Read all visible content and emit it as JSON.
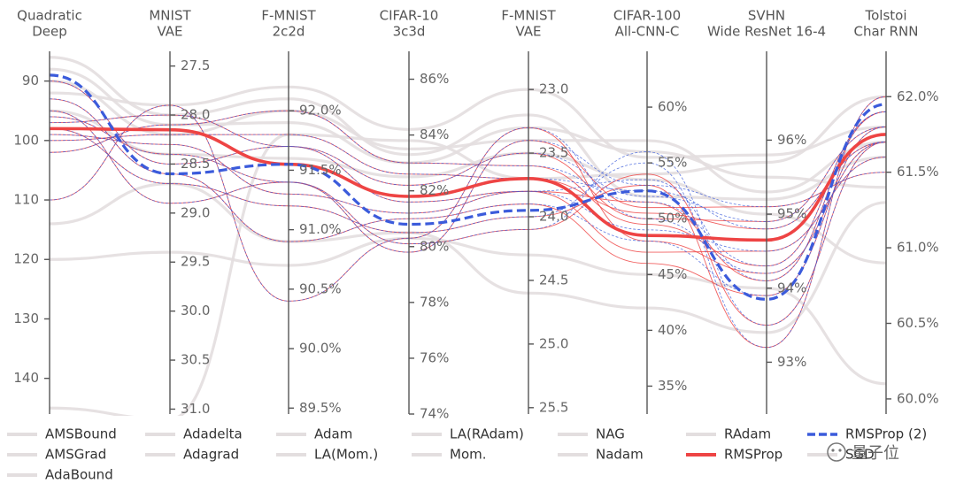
{
  "chart_data": {
    "type": "parallel-coordinates",
    "axes": [
      {
        "title": [
          "Quadratic",
          "Deep"
        ],
        "ticks": [
          "90",
          "100",
          "110",
          "120",
          "130",
          "140"
        ],
        "tick_values": [
          90,
          100,
          110,
          120,
          130,
          140
        ],
        "range": [
          85,
          146
        ],
        "inverted": true
      },
      {
        "title": [
          "MNIST",
          "VAE"
        ],
        "ticks": [
          "27.5",
          "28.0",
          "28.5",
          "29.0",
          "29.5",
          "30.0",
          "30.5",
          "31.0"
        ],
        "tick_values": [
          27.5,
          28.0,
          28.5,
          29.0,
          29.5,
          30.0,
          30.5,
          31.0
        ],
        "range": [
          27.35,
          31.05
        ],
        "inverted": true
      },
      {
        "title": [
          "F-MNIST",
          "2c2d"
        ],
        "ticks": [
          "92.0%",
          "91.5%",
          "91.0%",
          "90.5%",
          "90.0%",
          "89.5%"
        ],
        "tick_values": [
          92.0,
          91.5,
          91.0,
          90.5,
          90.0,
          89.5
        ],
        "range": [
          89.45,
          92.5
        ],
        "inverted": false
      },
      {
        "title": [
          "CIFAR-10",
          "3c3d"
        ],
        "ticks": [
          "86%",
          "84%",
          "82%",
          "80%",
          "78%",
          "76%",
          "74%"
        ],
        "tick_values": [
          86,
          84,
          82,
          80,
          78,
          76,
          74
        ],
        "range": [
          74,
          87
        ],
        "inverted": false
      },
      {
        "title": [
          "F-MNIST",
          "VAE"
        ],
        "ticks": [
          "23.0",
          "23.5",
          "24.0",
          "24.5",
          "25.0",
          "25.5"
        ],
        "tick_values": [
          23.0,
          23.5,
          24.0,
          24.5,
          25.0,
          25.5
        ],
        "range": [
          22.7,
          25.55
        ],
        "inverted": true
      },
      {
        "title": [
          "CIFAR-100",
          "All-CNN-C"
        ],
        "ticks": [
          "60%",
          "55%",
          "50%",
          "45%",
          "40%",
          "35%"
        ],
        "tick_values": [
          60,
          55,
          50,
          45,
          40,
          35
        ],
        "range": [
          32.5,
          65
        ],
        "inverted": false
      },
      {
        "title": [
          "SVHN",
          "Wide ResNet 16-4"
        ],
        "ticks": [
          "96%",
          "95%",
          "94%",
          "93%"
        ],
        "tick_values": [
          96,
          95,
          94,
          93
        ],
        "range": [
          92.3,
          97.2
        ],
        "inverted": false
      },
      {
        "title": [
          "Tolstoi",
          "Char RNN"
        ],
        "ticks": [
          "62.0%",
          "61.5%",
          "61.0%",
          "60.5%",
          "60.0%"
        ],
        "tick_values": [
          62.0,
          61.5,
          61.0,
          60.5,
          60.0
        ],
        "range": [
          59.9,
          62.3
        ],
        "inverted": false
      }
    ],
    "series": [
      {
        "name": "RMSProp",
        "values": [
          98,
          28.15,
          91.55,
          81.8,
          23.7,
          48.5,
          94.65,
          61.75
        ]
      },
      {
        "name": "RMSProp (2)",
        "values": [
          89,
          28.6,
          91.55,
          80.8,
          23.95,
          52.5,
          93.85,
          61.95
        ]
      }
    ],
    "background_runs": [
      [
        97,
        28.0,
        91.7,
        82.2,
        23.5,
        50.0,
        94.9,
        61.8
      ],
      [
        99,
        28.3,
        91.3,
        81.2,
        23.8,
        47.0,
        94.5,
        61.6
      ],
      [
        110,
        27.9,
        90.4,
        80.3,
        23.3,
        48.0,
        94.2,
        61.7
      ],
      [
        102,
        28.1,
        92.0,
        83.0,
        23.6,
        49.5,
        94.3,
        61.9
      ],
      [
        96,
        28.4,
        91.4,
        79.8,
        23.4,
        51.0,
        95.1,
        61.5
      ],
      [
        93,
        28.6,
        90.9,
        81.0,
        23.9,
        46.0,
        93.9,
        61.8
      ],
      [
        100,
        28.2,
        91.8,
        82.6,
        23.7,
        50.5,
        94.8,
        61.7
      ],
      [
        98,
        28.7,
        91.2,
        80.5,
        24.0,
        53.0,
        93.2,
        62.0
      ],
      [
        90,
        28.5,
        91.7,
        81.6,
        23.8,
        51.5,
        94.1,
        61.9
      ],
      [
        95,
        28.9,
        91.4,
        80.1,
        24.1,
        54.0,
        93.5,
        61.7
      ]
    ],
    "gray_runs": [
      [
        86,
        28.0,
        92.1,
        83.3,
        23.2,
        52.0,
        95.2,
        61.6
      ],
      [
        92,
        27.9,
        92.2,
        84.2,
        23.0,
        55.5,
        95.8,
        61.8
      ],
      [
        88,
        28.1,
        91.9,
        83.0,
        23.3,
        56.0,
        95.5,
        61.4
      ],
      [
        114,
        28.7,
        90.9,
        80.5,
        24.6,
        42.0,
        93.4,
        61.3
      ],
      [
        95,
        28.4,
        91.6,
        82.5,
        23.5,
        53.5,
        95.0,
        60.9
      ],
      [
        145,
        31.1,
        91.8,
        83.8,
        23.7,
        54.0,
        95.7,
        62.0
      ],
      [
        90,
        28.2,
        92.0,
        83.5,
        23.4,
        57.0,
        95.3,
        61.7
      ],
      [
        120,
        29.4,
        90.7,
        80.3,
        24.3,
        45.0,
        94.0,
        60.1
      ]
    ],
    "title": "",
    "legend": {
      "placement": "bottom",
      "entries": [
        {
          "label": "AMSBound",
          "color": "#e3dedf",
          "style": "gray"
        },
        {
          "label": "Adadelta",
          "color": "#e3dedf",
          "style": "gray"
        },
        {
          "label": "Adam",
          "color": "#e3dedf",
          "style": "gray"
        },
        {
          "label": "LA(RAdam)",
          "color": "#e3dedf",
          "style": "gray"
        },
        {
          "label": "NAG",
          "color": "#e3dedf",
          "style": "gray"
        },
        {
          "label": "RAdam",
          "color": "#e3dedf",
          "style": "gray"
        },
        {
          "label": "RMSProp (2)",
          "color": "#3b5bdb",
          "style": "dashed"
        },
        {
          "label": "AMSGrad",
          "color": "#e3dedf",
          "style": "gray"
        },
        {
          "label": "Adagrad",
          "color": "#e3dedf",
          "style": "gray"
        },
        {
          "label": "LA(Mom.)",
          "color": "#e3dedf",
          "style": "gray"
        },
        {
          "label": "Mom.",
          "color": "#e3dedf",
          "style": "gray"
        },
        {
          "label": "Nadam",
          "color": "#e3dedf",
          "style": "gray"
        },
        {
          "label": "RMSProp",
          "color": "#ee4444",
          "style": "solid"
        },
        {
          "label": "SGD",
          "color": "#e3dedf",
          "style": "gray"
        },
        {
          "label": "AdaBound",
          "color": "#e3dedf",
          "style": "gray"
        }
      ]
    }
  },
  "watermark": {
    "text": "量子位"
  },
  "colors": {
    "red": "#ee4444",
    "blue": "#3b5bdb",
    "gray": "#e3dedf",
    "axis": "#555555"
  }
}
